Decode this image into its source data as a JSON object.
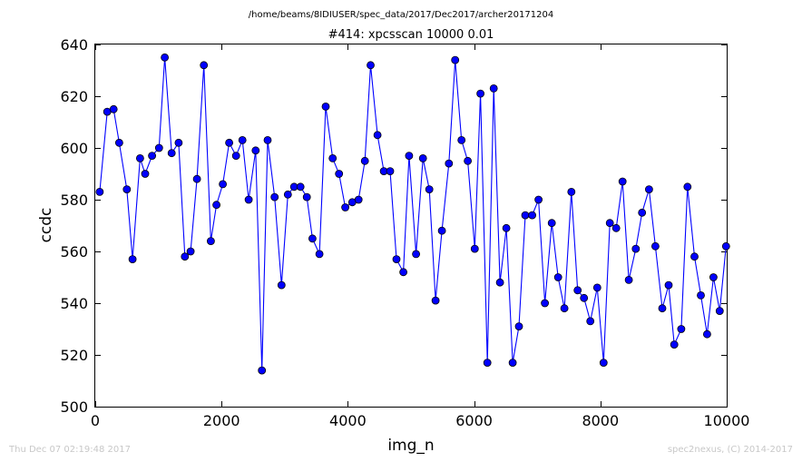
{
  "header": {
    "path_title": "/home/beams/8IDIUSER/spec_data/2017/Dec2017/archer20171204"
  },
  "footer": {
    "timestamp": "Thu Dec 07 02:19:48 2017",
    "credit": "spec2nexus, (C) 2014-2017"
  },
  "colors": {
    "line": "#0000ff",
    "marker_fill": "#0000ff",
    "marker_edge": "#000000"
  },
  "chart_data": {
    "type": "line",
    "title": "#414: xpcsscan 10000 0.01",
    "xlabel": "img_n",
    "ylabel": "ccdc",
    "xlim": [
      0,
      10000
    ],
    "ylim": [
      500,
      640
    ],
    "xticks": [
      0,
      2000,
      4000,
      6000,
      8000,
      10000
    ],
    "yticks": [
      500,
      520,
      540,
      560,
      580,
      600,
      620,
      640
    ],
    "grid": false,
    "legend": "none",
    "series": [
      {
        "marker": "circle",
        "x": [
          70,
          190,
          290,
          380,
          500,
          590,
          710,
          790,
          900,
          1010,
          1100,
          1210,
          1320,
          1420,
          1510,
          1610,
          1720,
          1830,
          1920,
          2020,
          2120,
          2230,
          2330,
          2430,
          2540,
          2640,
          2730,
          2840,
          2950,
          3050,
          3150,
          3250,
          3350,
          3440,
          3550,
          3650,
          3760,
          3860,
          3960,
          4070,
          4170,
          4270,
          4360,
          4470,
          4570,
          4670,
          4770,
          4880,
          4970,
          5080,
          5190,
          5290,
          5390,
          5490,
          5600,
          5700,
          5800,
          5900,
          6010,
          6100,
          6210,
          6310,
          6410,
          6510,
          6610,
          6710,
          6810,
          6920,
          7020,
          7120,
          7230,
          7330,
          7430,
          7540,
          7640,
          7740,
          7840,
          7950,
          8050,
          8150,
          8250,
          8350,
          8450,
          8560,
          8660,
          8770,
          8870,
          8980,
          9080,
          9170,
          9280,
          9380,
          9490,
          9590,
          9690,
          9790,
          9890,
          9990
        ],
        "y": [
          583,
          614,
          615,
          602,
          584,
          557,
          596,
          590,
          597,
          600,
          635,
          598,
          602,
          558,
          560,
          588,
          632,
          564,
          578,
          586,
          602,
          597,
          603,
          580,
          599,
          514,
          603,
          581,
          547,
          582,
          585,
          585,
          581,
          565,
          559,
          616,
          596,
          590,
          577,
          579,
          580,
          595,
          632,
          605,
          591,
          591,
          557,
          552,
          597,
          559,
          596,
          584,
          541,
          568,
          594,
          634,
          603,
          595,
          561,
          621,
          517,
          623,
          548,
          569,
          517,
          531,
          574,
          574,
          580,
          540,
          571,
          550,
          538,
          583,
          545,
          542,
          533,
          546,
          517,
          571,
          569,
          587,
          549,
          561,
          575,
          584,
          562,
          538,
          547,
          524,
          530,
          585,
          558,
          543,
          528,
          550,
          537,
          562
        ]
      }
    ]
  }
}
